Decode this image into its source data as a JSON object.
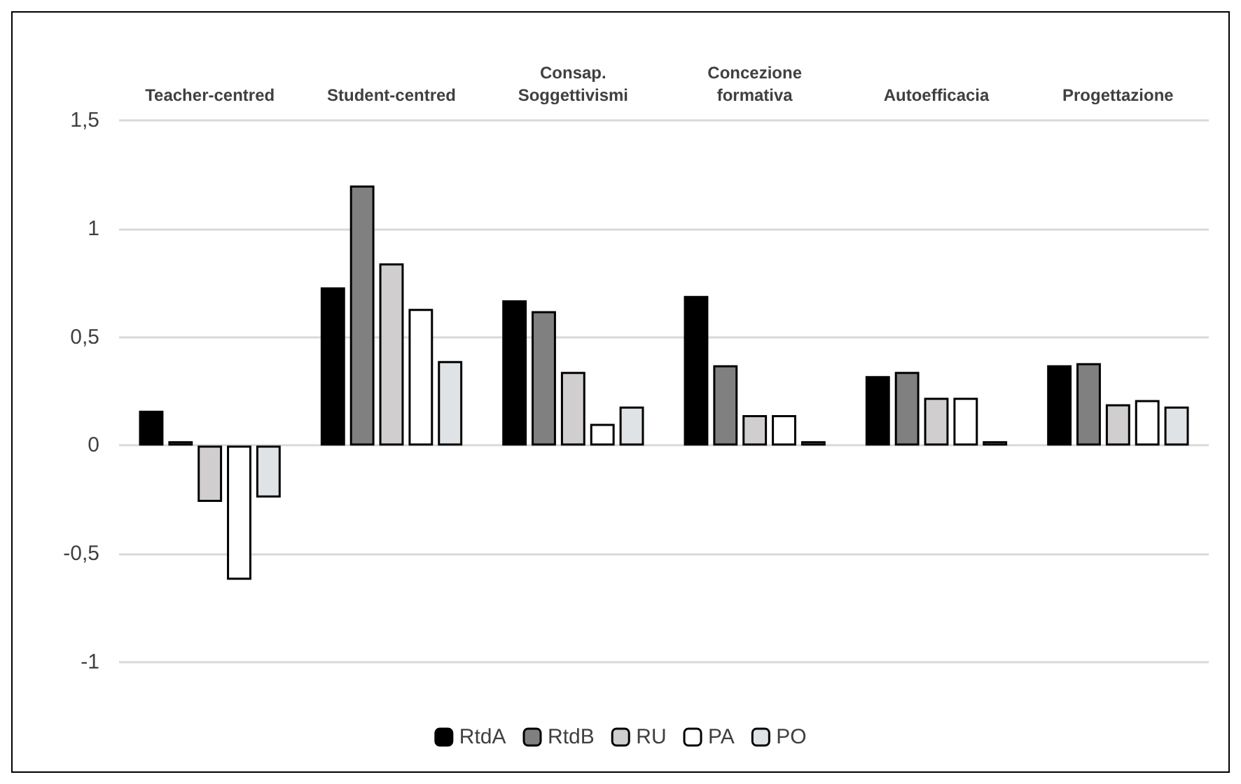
{
  "chart_data": {
    "type": "bar",
    "categories": [
      "Teacher-centred",
      "Student-centred",
      "Consap.\nSoggettivismi",
      "Concezione\nformativa",
      "Autoefficacia",
      "Progettazione"
    ],
    "series": [
      {
        "name": "RtdA",
        "color": "#000000",
        "values": [
          0.16,
          0.73,
          0.67,
          0.69,
          0.32,
          0.37
        ]
      },
      {
        "name": "RtdB",
        "color": "#808080",
        "values": [
          0.02,
          1.2,
          0.62,
          0.37,
          0.34,
          0.38
        ]
      },
      {
        "name": "RU",
        "color": "#d0cece",
        "values": [
          -0.26,
          0.84,
          0.34,
          0.14,
          0.22,
          0.19
        ]
      },
      {
        "name": "PA",
        "color": "#ffffff",
        "values": [
          -0.62,
          0.63,
          0.1,
          0.14,
          0.22,
          0.21
        ]
      },
      {
        "name": "PO",
        "color": "#dfe3e6",
        "values": [
          -0.24,
          0.39,
          0.18,
          0.02,
          0.02,
          0.18
        ]
      }
    ],
    "ylim": [
      -1,
      1.5
    ],
    "yticks": [
      {
        "value": -1,
        "label": "-1"
      },
      {
        "value": -0.5,
        "label": "-0,5"
      },
      {
        "value": 0,
        "label": "0"
      },
      {
        "value": 0.5,
        "label": "0,5"
      },
      {
        "value": 1,
        "label": "1"
      },
      {
        "value": 1.5,
        "label": "1,5"
      }
    ],
    "grid": "y",
    "legend": "bottom"
  }
}
